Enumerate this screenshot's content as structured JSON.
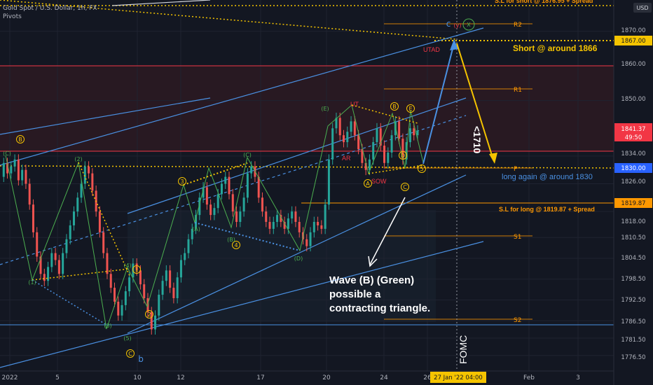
{
  "header": {
    "symbol": "Gold Spot / U.S. Dollar, 1h, FX",
    "indicator": "Pivots"
  },
  "chart_data": {
    "type": "candlestick",
    "currency": "USD",
    "ylim": [
      1772,
      1879
    ],
    "y_ticks": [
      1870.0,
      1860.0,
      1850.0,
      1834.0,
      1826.0,
      1818.0,
      1810.5,
      1804.5,
      1798.5,
      1792.5,
      1786.5,
      1781.5,
      1776.5
    ],
    "x_ticks": [
      "2022",
      "5",
      "10",
      "12",
      "17",
      "20",
      "24",
      "26",
      "Feb",
      "3"
    ],
    "cursor_time": "27 Jan '22   04:00",
    "last_price": {
      "value": "1841.37",
      "countdown": "49:50",
      "color": "#f23645"
    },
    "price_tags": [
      {
        "value": "1867.00",
        "color": "#f5c400"
      },
      {
        "value": "1830.00",
        "color": "#2962ff"
      },
      {
        "value": "1819.87",
        "color": "#ff9800"
      }
    ],
    "pivots": [
      {
        "label": "R2",
        "value": 1872.2
      },
      {
        "label": "R1",
        "value": 1852.5
      },
      {
        "label": "P",
        "value": 1830.0
      },
      {
        "label": "S1",
        "value": 1810.5
      },
      {
        "label": "S2",
        "value": 1787.5
      }
    ],
    "text_annotations": [
      {
        "text": "Short @ around 1866",
        "color": "#f5c400"
      },
      {
        "text": "long again @ around 1830",
        "color": "#4a90e2"
      },
      {
        "text": "S.L for long @ 1819.87 + Spread",
        "color": "#ff9800"
      },
      {
        "text": "S.L for short @ 1876.95 + Spread",
        "color": "#ff9800"
      },
      {
        "text": "UTAD",
        "color": "#f23645"
      },
      {
        "text": "UT",
        "color": "#f23645"
      },
      {
        "text": "AR",
        "color": "#f23645"
      },
      {
        "text": "SOW",
        "color": "#f23645"
      },
      {
        "text": "<1710",
        "color": "#ffffff"
      },
      {
        "text": "FOMC",
        "color": "#ffffff"
      },
      {
        "text": "Wave (B) (Green)",
        "color": "#ffffff"
      },
      {
        "text": "possible a",
        "color": "#ffffff"
      },
      {
        "text": "contracting triangle.",
        "color": "#ffffff"
      }
    ],
    "wave_labels": [
      {
        "text": "(C)",
        "color": "#4caf50"
      },
      {
        "text": "B",
        "color": "#f5c400"
      },
      {
        "text": "(2)",
        "color": "#4caf50"
      },
      {
        "text": "(1)",
        "color": "#4caf50"
      },
      {
        "text": "(3)",
        "color": "#4caf50"
      },
      {
        "text": "(4)",
        "color": "#4caf50"
      },
      {
        "text": "(5)",
        "color": "#4caf50"
      },
      {
        "text": "1",
        "color": "#f5c400"
      },
      {
        "text": "2",
        "color": "#f5c400"
      },
      {
        "text": "3",
        "color": "#f5c400"
      },
      {
        "text": "4",
        "color": "#f5c400"
      },
      {
        "text": "C",
        "color": "#f5c400"
      },
      {
        "text": "b",
        "color": "#4a90e2"
      },
      {
        "text": "(A)",
        "color": "#4caf50"
      },
      {
        "text": "(B)",
        "color": "#4caf50"
      },
      {
        "text": "(C)",
        "color": "#4caf50"
      },
      {
        "text": "(D)",
        "color": "#4caf50"
      },
      {
        "text": "(E)",
        "color": "#4caf50"
      },
      {
        "text": "A",
        "color": "#f5c400"
      },
      {
        "text": "B",
        "color": "#f5c400"
      },
      {
        "text": "C",
        "color": "#f5c400"
      },
      {
        "text": "D",
        "color": "#f5c400"
      },
      {
        "text": "E",
        "color": "#f5c400"
      },
      {
        "text": "5",
        "color": "#f5c400"
      },
      {
        "text": "c",
        "color": "#4a90e2"
      },
      {
        "text": "(y)",
        "color": "#f23645"
      },
      {
        "text": "X",
        "color": "#4caf50"
      }
    ],
    "price_path": [
      1828,
      1832,
      1829,
      1831,
      1833,
      1827,
      1830,
      1826,
      1820,
      1812,
      1805,
      1800,
      1798,
      1802,
      1806,
      1804,
      1800,
      1806,
      1810,
      1814,
      1818,
      1822,
      1826,
      1831,
      1829,
      1824,
      1818,
      1812,
      1806,
      1800,
      1796,
      1792,
      1788,
      1791,
      1795,
      1799,
      1803,
      1801,
      1797,
      1793,
      1789,
      1784,
      1788,
      1794,
      1798,
      1801,
      1796,
      1793,
      1799,
      1804,
      1806,
      1810,
      1813,
      1817,
      1822,
      1825,
      1820,
      1817,
      1819,
      1823,
      1826,
      1828,
      1823,
      1818,
      1815,
      1818,
      1822,
      1829,
      1831,
      1828,
      1822,
      1818,
      1815,
      1813,
      1815,
      1817,
      1815,
      1813,
      1816,
      1818,
      1815,
      1812,
      1810,
      1808,
      1812,
      1815,
      1814,
      1813,
      1820,
      1833,
      1842,
      1845,
      1840,
      1838,
      1841,
      1844,
      1840,
      1836,
      1832,
      1830,
      1833,
      1838,
      1842,
      1837,
      1832,
      1835,
      1840,
      1844,
      1839,
      1833,
      1838,
      1842,
      1840,
      1841.37
    ],
    "projection": [
      1830.5,
      1865.5,
      1831.0
    ],
    "forecast_label": "Short @ around 1866"
  }
}
